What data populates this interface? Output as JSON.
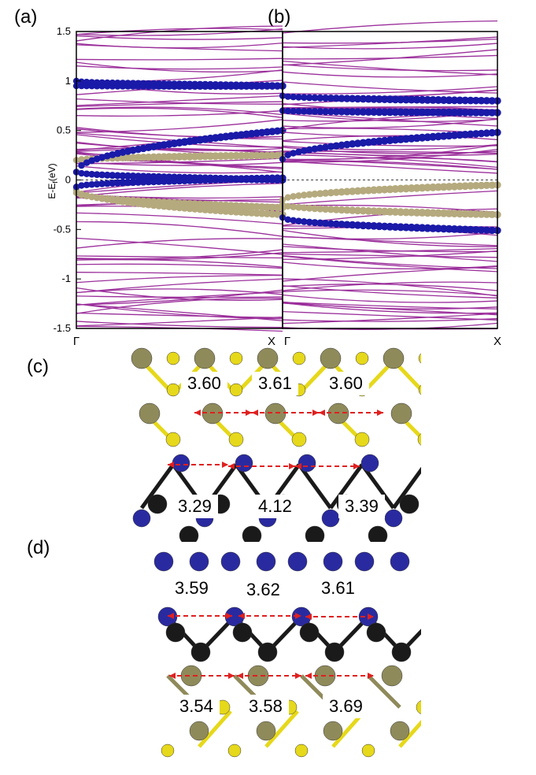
{
  "panel_labels": {
    "a": "(a)",
    "b": "(b)",
    "c": "(c)",
    "d": "(d)"
  },
  "axis": {
    "ylabel": "E-E",
    "ylabel_sub": "f",
    "ylabel_unit": "(eV)",
    "yticks": [
      "1.5",
      "1",
      "0.5",
      "0",
      "-0.5",
      "-1",
      "-1.5"
    ],
    "x_left": "Γ",
    "x_right": "X"
  },
  "chart_data": [
    {
      "type": "line",
      "panel": "(a)",
      "title": "",
      "xlabel": "",
      "ylabel": "E-Ef(eV)",
      "x_ticks": [
        "Γ",
        "X"
      ],
      "ylim": [
        -1.5,
        1.5
      ],
      "fermi_level": 0,
      "colors": {
        "bands": "#9b2f9b",
        "blue_projection": "#1a1aa8",
        "tan_projection": "#b5aa7e"
      },
      "highlighted_blue_bands": [
        {
          "start": 0.08,
          "end": 0.5
        },
        {
          "start": 0.08,
          "end": 0.0
        },
        {
          "start": -0.07,
          "end": 0.02
        },
        {
          "start": 0.95,
          "end": 0.95
        },
        {
          "start": 1.0,
          "end": 0.95
        }
      ],
      "highlighted_tan_bands": [
        {
          "start": -0.13,
          "end": -0.28
        },
        {
          "start": 0.2,
          "end": 0.25
        },
        {
          "start": -0.1,
          "end": -0.35
        }
      ]
    },
    {
      "type": "line",
      "panel": "(b)",
      "title": "",
      "xlabel": "",
      "ylabel": "",
      "x_ticks": [
        "Γ",
        "X"
      ],
      "ylim": [
        -1.5,
        1.5
      ],
      "fermi_level": 0,
      "colors": {
        "bands": "#9b2f9b",
        "blue_projection": "#1a1aa8",
        "tan_projection": "#b5aa7e"
      },
      "highlighted_blue_bands": [
        {
          "start": 0.21,
          "end": 0.48
        },
        {
          "start": -0.38,
          "end": -0.51
        },
        {
          "start": 0.7,
          "end": 0.68
        },
        {
          "start": 0.85,
          "end": 0.8
        }
      ],
      "highlighted_tan_bands": [
        {
          "start": -0.2,
          "end": -0.05
        },
        {
          "start": -0.25,
          "end": -0.35
        }
      ]
    }
  ],
  "structure_c": {
    "top_distances": [
      "3.60",
      "3.61",
      "3.60"
    ],
    "bottom_distances": [
      "3.29",
      "4.12",
      "3.39"
    ]
  },
  "structure_d": {
    "top_distances": [
      "3.59",
      "3.62",
      "3.61"
    ],
    "bottom_distances": [
      "3.54",
      "3.58",
      "3.69"
    ]
  }
}
